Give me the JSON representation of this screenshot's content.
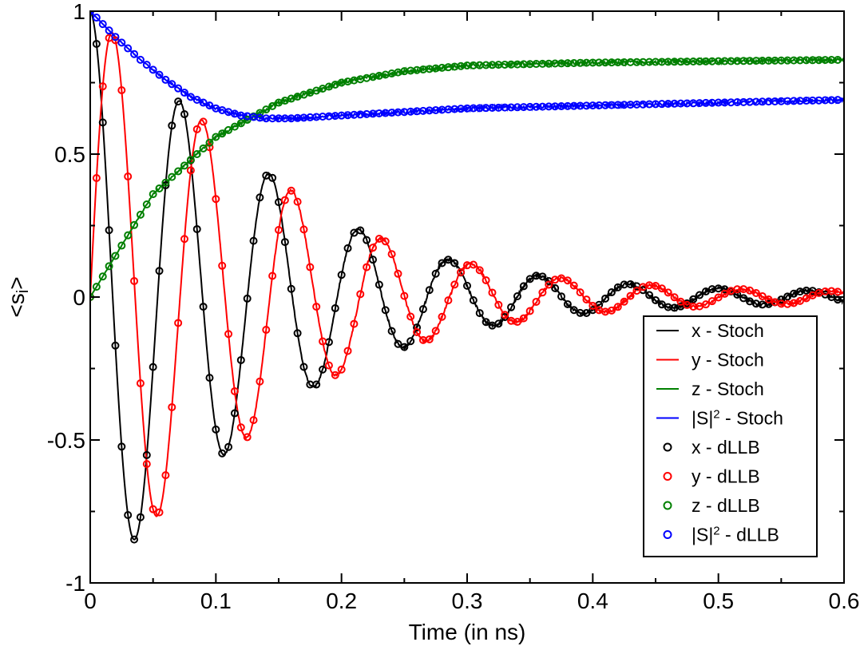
{
  "chart_data": {
    "type": "line",
    "title": "",
    "xlabel": "Time (in ns)",
    "ylabel": "<s",
    "ylabel_subscript": "i",
    "ylabel_close": ">",
    "xlim": [
      0,
      0.6
    ],
    "ylim": [
      -1,
      1
    ],
    "xticks": [
      0,
      0.1,
      0.2,
      0.3,
      0.4,
      0.5,
      0.6
    ],
    "xtick_labels": [
      "0",
      "0.1",
      "0.2",
      "0.3",
      "0.4",
      "0.5",
      "0.6"
    ],
    "yticks": [
      -1,
      -0.5,
      0,
      0.5,
      1
    ],
    "ytick_labels": [
      "-1",
      "-0.5",
      "0",
      "0.5",
      "1"
    ],
    "grid": false,
    "legend_position": "bottom-right",
    "series": [
      {
        "name": "x - Stoch",
        "kind": "line",
        "color": "#000000",
        "component": "x"
      },
      {
        "name": "y - Stoch",
        "kind": "line",
        "color": "#ff0000",
        "component": "y"
      },
      {
        "name": "z - Stoch",
        "kind": "line",
        "color": "#008000",
        "component": "z"
      },
      {
        "name": "|S|",
        "sup": "2",
        "name_suffix": " - Stoch",
        "kind": "line",
        "color": "#0000ff",
        "component": "S2"
      },
      {
        "name": "x - dLLB",
        "kind": "markers",
        "color": "#000000",
        "component": "x"
      },
      {
        "name": "y - dLLB",
        "kind": "markers",
        "color": "#ff0000",
        "component": "y"
      },
      {
        "name": "z - dLLB",
        "kind": "markers",
        "color": "#008000",
        "component": "z"
      },
      {
        "name": "|S|",
        "sup": "2",
        "name_suffix": " - dLLB",
        "kind": "markers",
        "color": "#0000ff",
        "component": "S2"
      }
    ],
    "model": {
      "period_ns": 0.0715,
      "x_envelope": [
        [
          0.0,
          1.0
        ],
        [
          0.035,
          0.85
        ],
        [
          0.07,
          0.69
        ],
        [
          0.107,
          0.55
        ],
        [
          0.143,
          0.43
        ],
        [
          0.179,
          0.31
        ],
        [
          0.214,
          0.235
        ],
        [
          0.25,
          0.175
        ],
        [
          0.286,
          0.13
        ],
        [
          0.321,
          0.1
        ],
        [
          0.357,
          0.075
        ],
        [
          0.39,
          0.058
        ],
        [
          0.43,
          0.045
        ],
        [
          0.5,
          0.03
        ],
        [
          0.6,
          0.02
        ]
      ],
      "z_curve": [
        [
          0.0,
          0.0
        ],
        [
          0.05,
          0.36
        ],
        [
          0.1,
          0.56
        ],
        [
          0.15,
          0.68
        ],
        [
          0.2,
          0.75
        ],
        [
          0.25,
          0.79
        ],
        [
          0.3,
          0.81
        ],
        [
          0.4,
          0.82
        ],
        [
          0.5,
          0.825
        ],
        [
          0.6,
          0.83
        ]
      ],
      "S2_curve": [
        [
          0.0,
          1.0
        ],
        [
          0.02,
          0.91
        ],
        [
          0.04,
          0.83
        ],
        [
          0.06,
          0.76
        ],
        [
          0.08,
          0.7
        ],
        [
          0.1,
          0.66
        ],
        [
          0.12,
          0.635
        ],
        [
          0.14,
          0.625
        ],
        [
          0.16,
          0.625
        ],
        [
          0.2,
          0.635
        ],
        [
          0.3,
          0.66
        ],
        [
          0.4,
          0.67
        ],
        [
          0.5,
          0.68
        ],
        [
          0.6,
          0.69
        ]
      ]
    }
  }
}
